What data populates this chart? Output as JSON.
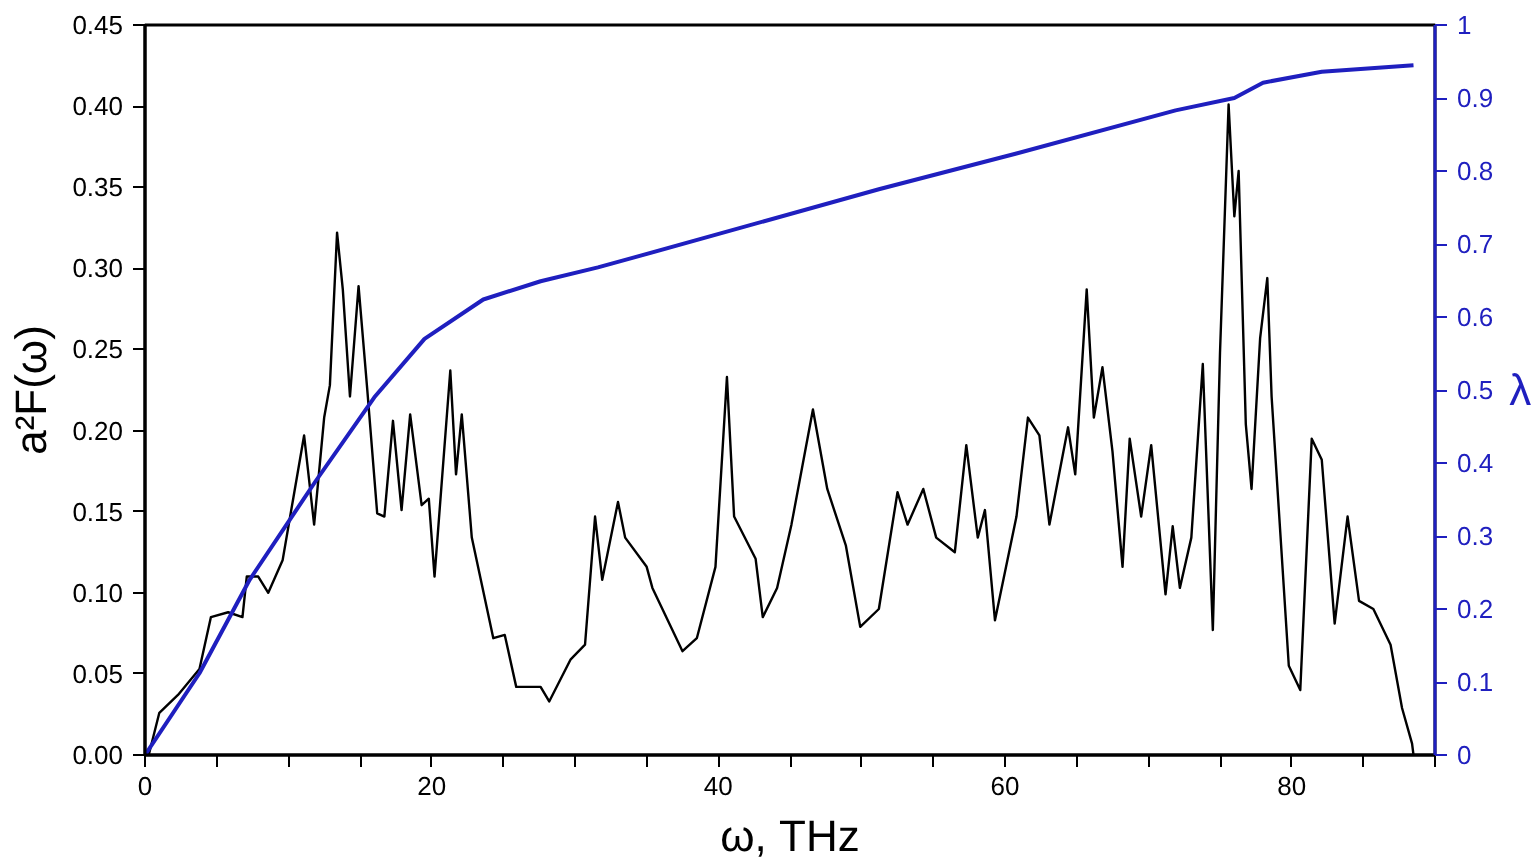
{
  "chart_data": {
    "type": "line",
    "xlabel": "ω, THz",
    "ylabel": "a²F(ω)",
    "y2label": "λ",
    "xlim": [
      0,
      90
    ],
    "ylim": [
      0,
      0.45
    ],
    "y2lim": [
      0,
      1
    ],
    "xticks": [
      0,
      {
        "value": 5,
        "label": null
      },
      {
        "value": 10,
        "label": null
      },
      {
        "value": 15,
        "label": null
      },
      20,
      {
        "value": 25,
        "label": null
      },
      {
        "value": 30,
        "label": null
      },
      {
        "value": 35,
        "label": null
      },
      40,
      {
        "value": 45,
        "label": null
      },
      {
        "value": 50,
        "label": null
      },
      {
        "value": 55,
        "label": null
      },
      60,
      {
        "value": 65,
        "label": null
      },
      {
        "value": 70,
        "label": null
      },
      {
        "value": 75,
        "label": null
      },
      80,
      {
        "value": 85,
        "label": null
      },
      {
        "value": 90,
        "label": null
      }
    ],
    "yticks": [
      {
        "value": 0,
        "label": "0.00"
      },
      {
        "value": 0.05,
        "label": "0.05"
      },
      {
        "value": 0.1,
        "label": "0.10"
      },
      {
        "value": 0.15,
        "label": "0.15"
      },
      {
        "value": 0.2,
        "label": "0.20"
      },
      {
        "value": 0.25,
        "label": "0.25"
      },
      {
        "value": 0.3,
        "label": "0.30"
      },
      {
        "value": 0.35,
        "label": "0.35"
      },
      {
        "value": 0.4,
        "label": "0.40"
      },
      {
        "value": 0.45,
        "label": "0.45"
      }
    ],
    "y2ticks": [
      0,
      0.1,
      0.2,
      0.3,
      0.4,
      0.5,
      0.6,
      0.7,
      0.8,
      0.9,
      1
    ],
    "grid": false,
    "marker": "none",
    "line_style": "solid",
    "series": [
      {
        "color": "#000000",
        "axis": "y",
        "x": [
          0.26,
          1.0,
          2.3,
          3.8,
          4.6,
          5.8,
          6.8,
          7.1,
          7.9,
          8.6,
          9.6,
          10.3,
          11.1,
          11.8,
          12.5,
          12.9,
          13.4,
          13.8,
          14.3,
          14.9,
          15.5,
          16.2,
          16.7,
          17.3,
          17.9,
          18.5,
          19.3,
          19.8,
          20.2,
          21.3,
          21.7,
          22.1,
          22.8,
          24.3,
          25.1,
          25.9,
          27.6,
          28.2,
          29.7,
          30.7,
          31.4,
          31.9,
          33.0,
          33.5,
          35.0,
          35.4,
          37.5,
          38.5,
          39.8,
          40.6,
          41.1,
          42.6,
          43.1,
          44.1,
          45.1,
          46.6,
          47.6,
          48.9,
          49.9,
          51.2,
          52.5,
          53.2,
          54.3,
          55.2,
          56.5,
          57.3,
          58.1,
          58.6,
          59.3,
          60.8,
          61.6,
          62.4,
          63.1,
          64.4,
          64.9,
          65.7,
          66.2,
          66.8,
          67.5,
          68.2,
          68.7,
          69.5,
          70.2,
          71.2,
          71.7,
          72.2,
          73.0,
          73.8,
          74.5,
          75.0,
          75.6,
          76.0,
          76.3,
          76.8,
          77.2,
          77.8,
          78.3,
          78.6,
          79.8,
          80.6,
          81.4,
          82.1,
          83.0,
          83.9,
          84.7,
          85.7,
          86.9,
          87.7,
          88.4,
          88.5
        ],
        "values": [
          0.0,
          0.026,
          0.037,
          0.053,
          0.085,
          0.088,
          0.085,
          0.11,
          0.11,
          0.1,
          0.12,
          0.156,
          0.197,
          0.142,
          0.208,
          0.228,
          0.322,
          0.287,
          0.221,
          0.289,
          0.226,
          0.149,
          0.147,
          0.206,
          0.151,
          0.21,
          0.154,
          0.158,
          0.11,
          0.237,
          0.173,
          0.21,
          0.134,
          0.072,
          0.074,
          0.042,
          0.042,
          0.033,
          0.059,
          0.068,
          0.147,
          0.108,
          0.156,
          0.134,
          0.116,
          0.103,
          0.064,
          0.072,
          0.116,
          0.233,
          0.147,
          0.121,
          0.085,
          0.103,
          0.142,
          0.213,
          0.164,
          0.129,
          0.079,
          0.09,
          0.162,
          0.142,
          0.164,
          0.134,
          0.125,
          0.191,
          0.134,
          0.151,
          0.083,
          0.147,
          0.208,
          0.197,
          0.142,
          0.202,
          0.173,
          0.287,
          0.208,
          0.239,
          0.187,
          0.116,
          0.195,
          0.147,
          0.191,
          0.099,
          0.141,
          0.103,
          0.134,
          0.241,
          0.077,
          0.248,
          0.401,
          0.332,
          0.36,
          0.204,
          0.164,
          0.257,
          0.294,
          0.221,
          0.055,
          0.04,
          0.195,
          0.182,
          0.081,
          0.147,
          0.095,
          0.09,
          0.068,
          0.029,
          0.007,
          0.0
        ]
      },
      {
        "color": "#1f1fbf",
        "axis": "y2",
        "x": [
          0,
          3.8,
          7.3,
          11.9,
          16.0,
          19.5,
          23.6,
          27.6,
          31.6,
          34.2,
          51.2,
          60.8,
          71.9,
          76.0,
          78.0,
          82.1,
          88.5
        ],
        "values": [
          0,
          0.112,
          0.24,
          0.375,
          0.49,
          0.57,
          0.624,
          0.649,
          0.668,
          0.682,
          0.775,
          0.824,
          0.883,
          0.9,
          0.921,
          0.936,
          0.945
        ]
      }
    ]
  }
}
